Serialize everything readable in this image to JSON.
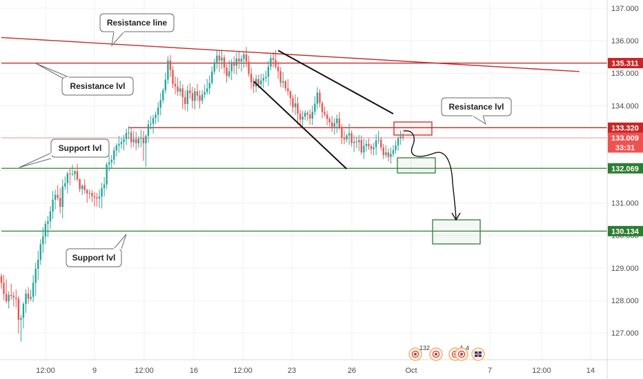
{
  "chart_data": {
    "type": "candlestick",
    "title": "",
    "xlabel": "",
    "ylabel": "",
    "ylim": [
      126.6,
      137.3
    ],
    "grid": true,
    "y_ticks": [
      "127.000",
      "128.000",
      "129.000",
      "130.000",
      "131.000",
      "132.000",
      "133.000",
      "134.000",
      "135.000",
      "136.000",
      "137.000"
    ],
    "x_ticks": [
      "12:00",
      "9",
      "12:00",
      "16",
      "12:00",
      "23",
      "26",
      "Oct",
      "7",
      "12:00",
      "14"
    ],
    "price_badges": [
      {
        "label": "135.311",
        "color": "#c62828",
        "price": 135.311
      },
      {
        "label": "133.320",
        "color": "#c62828",
        "price": 133.32
      },
      {
        "label": "133.009",
        "color": "#ef5350",
        "price": 133.009
      },
      {
        "label": "33:31",
        "color": "#ef5350",
        "price": 132.8
      },
      {
        "label": "132.069",
        "color": "#2e7d32",
        "price": 132.069
      },
      {
        "label": "130.134",
        "color": "#2e7d32",
        "price": 130.134
      }
    ],
    "horizontal_levels": [
      {
        "price": 135.311,
        "color": "#c62828",
        "from_index": 0
      },
      {
        "price": 133.32,
        "color": "#c62828",
        "from_index": 52
      },
      {
        "price": 133.009,
        "color": "#ef9a9a",
        "from_index": 0
      },
      {
        "price": 132.069,
        "color": "#2e7d32",
        "from_index": 0
      },
      {
        "price": 130.134,
        "color": "#2e7d32",
        "from_index": 0
      }
    ],
    "trendline": {
      "from": [
        0,
        136.1
      ],
      "to": [
        236,
        135.05
      ],
      "color": "#c62828"
    },
    "channel": [
      {
        "from": [
          113,
          135.7
        ],
        "to": [
          160,
          133.75
        ]
      },
      {
        "from": [
          103,
          134.75
        ],
        "to": [
          141,
          132.05
        ]
      }
    ],
    "candles_ohlc": [
      [
        128.75,
        128.82,
        128.36,
        128.54
      ],
      [
        128.54,
        128.79,
        128.01,
        128.2
      ],
      [
        128.2,
        128.65,
        127.91,
        127.97
      ],
      [
        127.97,
        128.28,
        127.75,
        128.17
      ],
      [
        128.17,
        128.52,
        128.02,
        128.14
      ],
      [
        128.14,
        128.26,
        127.81,
        128.09
      ],
      [
        128.09,
        128.33,
        127.78,
        128.05
      ],
      [
        128.05,
        128.14,
        126.98,
        127.4
      ],
      [
        127.4,
        127.55,
        126.73,
        127.46
      ],
      [
        127.46,
        127.95,
        127.14,
        127.89
      ],
      [
        127.89,
        128.34,
        127.61,
        128.21
      ],
      [
        128.21,
        128.41,
        127.9,
        128.05
      ],
      [
        128.05,
        128.33,
        127.98,
        128.11
      ],
      [
        128.11,
        128.78,
        127.94,
        128.54
      ],
      [
        128.54,
        129.16,
        128.15,
        128.97
      ],
      [
        128.97,
        129.53,
        128.63,
        129.25
      ],
      [
        129.25,
        129.88,
        129.09,
        129.73
      ],
      [
        129.73,
        130.25,
        129.46,
        129.97
      ],
      [
        129.97,
        130.45,
        129.74,
        130.36
      ],
      [
        130.36,
        130.6,
        129.95,
        130.44
      ],
      [
        130.44,
        130.9,
        130.2,
        130.74
      ],
      [
        130.74,
        131.37,
        130.51,
        131.1
      ],
      [
        131.1,
        131.41,
        130.8,
        131.25
      ],
      [
        131.25,
        131.55,
        131.08,
        131.16
      ],
      [
        131.16,
        131.46,
        130.67,
        130.88
      ],
      [
        130.88,
        131.73,
        130.53,
        131.51
      ],
      [
        131.51,
        131.82,
        131.41,
        131.61
      ],
      [
        131.61,
        131.97,
        131.3,
        131.91
      ],
      [
        131.91,
        132.07,
        131.54,
        131.89
      ],
      [
        131.89,
        132.18,
        131.84,
        131.89
      ],
      [
        131.89,
        132.02,
        131.7,
        131.98
      ],
      [
        131.98,
        132.21,
        131.67,
        131.73
      ],
      [
        131.73,
        131.76,
        131.33,
        131.43
      ],
      [
        131.43,
        131.57,
        131.25,
        131.54
      ],
      [
        131.54,
        131.74,
        131.29,
        131.4
      ],
      [
        131.4,
        131.44,
        131.01,
        131.29
      ],
      [
        131.29,
        131.42,
        131.12,
        131.31
      ],
      [
        131.31,
        131.4,
        131.03,
        131.21
      ],
      [
        131.21,
        131.34,
        130.89,
        131.17
      ],
      [
        131.17,
        131.31,
        130.89,
        131.14
      ],
      [
        131.14,
        131.41,
        130.85,
        131.2
      ],
      [
        131.2,
        131.62,
        130.83,
        131.46
      ],
      [
        131.46,
        131.8,
        131.2,
        131.57
      ],
      [
        131.57,
        132.25,
        131.43,
        132.19
      ],
      [
        132.19,
        132.45,
        131.98,
        132.25
      ],
      [
        132.25,
        132.48,
        132.08,
        132.33
      ],
      [
        132.33,
        132.73,
        132.18,
        132.62
      ],
      [
        132.62,
        132.84,
        132.43,
        132.77
      ],
      [
        132.77,
        133.07,
        132.55,
        132.82
      ],
      [
        132.82,
        133.02,
        132.67,
        132.88
      ],
      [
        132.88,
        133.1,
        132.62,
        132.97
      ],
      [
        132.97,
        133.29,
        132.79,
        133.16
      ],
      [
        133.16,
        133.37,
        132.96,
        133.17
      ],
      [
        133.17,
        133.31,
        132.7,
        132.87
      ],
      [
        132.87,
        133.22,
        132.73,
        132.97
      ],
      [
        132.97,
        133.19,
        132.63,
        132.84
      ],
      [
        132.84,
        133.05,
        132.71,
        132.98
      ],
      [
        132.98,
        133.26,
        132.72,
        133.01
      ],
      [
        133.01,
        133.22,
        132.3,
        132.84
      ],
      [
        132.84,
        133.12,
        132.11,
        133.07
      ],
      [
        133.07,
        133.56,
        132.86,
        133.42
      ],
      [
        133.42,
        133.68,
        133.26,
        133.44
      ],
      [
        133.44,
        133.71,
        133.14,
        133.62
      ],
      [
        133.62,
        133.82,
        133.43,
        133.72
      ],
      [
        133.72,
        134.11,
        133.49,
        133.94
      ],
      [
        133.94,
        134.39,
        133.7,
        134.17
      ],
      [
        134.17,
        134.54,
        134.08,
        134.47
      ],
      [
        134.47,
        135.02,
        134.37,
        134.8
      ],
      [
        134.8,
        135.52,
        134.66,
        135.39
      ],
      [
        135.39,
        135.56,
        134.88,
        135.1
      ],
      [
        135.1,
        135.22,
        134.54,
        134.67
      ],
      [
        134.67,
        134.9,
        134.35,
        134.59
      ],
      [
        134.59,
        134.86,
        134.3,
        134.43
      ],
      [
        134.43,
        134.77,
        134.3,
        134.53
      ],
      [
        134.53,
        134.66,
        133.9,
        134.26
      ],
      [
        134.26,
        134.47,
        133.86,
        134.05
      ],
      [
        134.05,
        134.63,
        133.82,
        134.47
      ],
      [
        134.47,
        134.69,
        134.21,
        134.38
      ],
      [
        134.38,
        134.58,
        133.91,
        134.15
      ],
      [
        134.15,
        134.54,
        133.89,
        134.44
      ],
      [
        134.44,
        134.67,
        134.14,
        134.31
      ],
      [
        134.31,
        134.47,
        133.91,
        134.15
      ],
      [
        134.15,
        134.48,
        134.05,
        134.34
      ],
      [
        134.34,
        134.65,
        134.23,
        134.42
      ],
      [
        134.42,
        134.82,
        134.34,
        134.53
      ],
      [
        134.53,
        134.93,
        134.34,
        134.7
      ],
      [
        134.7,
        135.21,
        134.64,
        135.05
      ],
      [
        135.05,
        135.45,
        134.96,
        135.33
      ],
      [
        135.33,
        135.71,
        135.13,
        135.54
      ],
      [
        135.54,
        135.69,
        135.04,
        135.39
      ],
      [
        135.39,
        135.7,
        135.13,
        135.48
      ],
      [
        135.48,
        135.57,
        134.98,
        135.17
      ],
      [
        135.17,
        135.28,
        134.71,
        134.91
      ],
      [
        134.91,
        135.4,
        134.84,
        135.06
      ],
      [
        135.06,
        135.43,
        134.79,
        135.34
      ],
      [
        135.34,
        135.52,
        134.99,
        135.23
      ],
      [
        135.23,
        135.64,
        134.96,
        135.45
      ],
      [
        135.45,
        135.68,
        135.13,
        135.36
      ],
      [
        135.36,
        135.55,
        135.05,
        135.44
      ],
      [
        135.44,
        135.65,
        135.17,
        135.58
      ],
      [
        135.58,
        135.81,
        135.18,
        135.35
      ],
      [
        135.35,
        135.54,
        134.89,
        134.98
      ],
      [
        134.98,
        135.18,
        134.51,
        134.72
      ],
      [
        134.72,
        134.86,
        134.39,
        134.59
      ],
      [
        134.59,
        134.95,
        134.42,
        134.82
      ],
      [
        134.82,
        134.95,
        134.53,
        134.66
      ],
      [
        134.66,
        134.98,
        134.57,
        134.77
      ],
      [
        134.77,
        134.98,
        134.55,
        134.85
      ],
      [
        134.85,
        135.08,
        134.72,
        134.89
      ],
      [
        134.89,
        135.38,
        134.61,
        135.2
      ],
      [
        135.2,
        135.58,
        135.09,
        135.47
      ],
      [
        135.47,
        135.65,
        135.18,
        135.41
      ],
      [
        135.41,
        135.71,
        135.13,
        135.2
      ],
      [
        135.2,
        135.35,
        134.82,
        135.06
      ],
      [
        135.06,
        135.19,
        134.57,
        134.71
      ],
      [
        134.71,
        135.04,
        134.55,
        134.75
      ],
      [
        134.75,
        134.79,
        134.44,
        134.53
      ],
      [
        134.53,
        134.82,
        134.31,
        134.44
      ],
      [
        134.44,
        134.48,
        134.0,
        134.23
      ],
      [
        134.23,
        134.33,
        133.78,
        133.95
      ],
      [
        133.95,
        134.35,
        133.71,
        134.07
      ],
      [
        134.07,
        134.27,
        133.41,
        133.75
      ],
      [
        133.75,
        133.87,
        133.3,
        133.57
      ],
      [
        133.57,
        133.85,
        133.3,
        133.66
      ],
      [
        133.66,
        133.86,
        133.55,
        133.78
      ],
      [
        133.78,
        133.85,
        133.53,
        133.73
      ],
      [
        133.73,
        133.88,
        133.41,
        133.6
      ],
      [
        133.6,
        134.0,
        133.4,
        133.81
      ],
      [
        133.81,
        134.29,
        133.71,
        134.06
      ],
      [
        134.06,
        134.57,
        133.9,
        134.4
      ],
      [
        134.4,
        134.51,
        133.95,
        134.08
      ],
      [
        134.08,
        134.14,
        133.61,
        133.8
      ],
      [
        133.8,
        133.97,
        133.66,
        133.73
      ],
      [
        133.73,
        133.84,
        133.39,
        133.59
      ],
      [
        133.59,
        133.65,
        133.36,
        133.49
      ],
      [
        133.49,
        133.68,
        133.18,
        133.35
      ],
      [
        133.35,
        133.61,
        133.1,
        133.46
      ],
      [
        133.46,
        133.72,
        133.16,
        133.6
      ],
      [
        133.6,
        133.8,
        133.26,
        133.34
      ],
      [
        133.34,
        133.43,
        132.81,
        133.01
      ],
      [
        133.01,
        133.22,
        132.81,
        132.96
      ],
      [
        132.96,
        133.13,
        132.88,
        133.08
      ],
      [
        133.08,
        133.44,
        132.79,
        133.15
      ],
      [
        133.15,
        133.24,
        132.73,
        132.85
      ],
      [
        132.85,
        133.09,
        132.57,
        132.89
      ],
      [
        132.89,
        133.05,
        132.69,
        132.87
      ],
      [
        132.87,
        133.1,
        132.6,
        132.94
      ],
      [
        132.94,
        133.08,
        132.49,
        132.56
      ],
      [
        132.56,
        132.98,
        132.36,
        132.76
      ],
      [
        132.76,
        132.95,
        132.58,
        132.82
      ],
      [
        132.82,
        132.99,
        132.64,
        132.75
      ],
      [
        132.75,
        132.81,
        132.5,
        132.66
      ],
      [
        132.66,
        132.85,
        132.46,
        132.72
      ],
      [
        132.72,
        133.12,
        132.48,
        132.93
      ],
      [
        132.93,
        133.23,
        132.82,
        132.95
      ],
      [
        132.95,
        133.04,
        132.61,
        132.71
      ],
      [
        132.71,
        132.82,
        132.35,
        132.48
      ],
      [
        132.48,
        132.78,
        132.39,
        132.56
      ],
      [
        132.56,
        132.68,
        132.28,
        132.42
      ],
      [
        132.42,
        132.71,
        132.21,
        132.51
      ],
      [
        132.51,
        132.78,
        132.42,
        132.63
      ],
      [
        132.63,
        132.93,
        132.52,
        132.77
      ],
      [
        132.77,
        133.06,
        132.61,
        132.99
      ],
      [
        132.99,
        133.23,
        132.79,
        133.05
      ],
      [
        133.05,
        133.15,
        132.92,
        133.01
      ]
    ],
    "callouts": [
      {
        "text": "Resistance line"
      },
      {
        "text": "Resistance lvl"
      },
      {
        "text": "Resistance lvl"
      },
      {
        "text": "Support lvl"
      },
      {
        "text": "Support lvl"
      }
    ],
    "event_icons": [
      {
        "count": "132"
      },
      {
        "count": ""
      },
      {
        "count": "4"
      },
      {
        "count": "4"
      },
      {
        "count": ""
      }
    ]
  }
}
